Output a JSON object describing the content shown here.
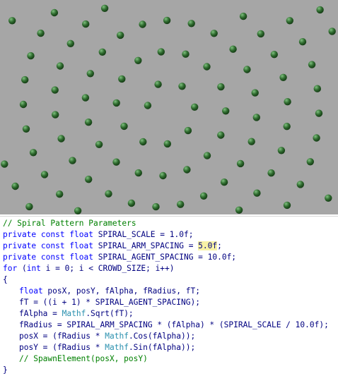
{
  "colors": {
    "background": "#a6a6a6",
    "agent_fill": "#2f6b2f",
    "comment": "#008000",
    "keyword": "#0000ff",
    "type": "#2b91af",
    "text": "#000080",
    "highlight": "#f7f2a6"
  },
  "scene": {
    "agent_shape": "green-sphere",
    "pattern": "spiral"
  },
  "code": {
    "l1": "// Spiral Pattern Parameters",
    "l2a": "private const float",
    "l2b": " SPIRAL_SCALE = 1.0f;",
    "l3a": "private const float",
    "l3b": " SPIRAL_ARM_SPACING = ",
    "l3c": "5.0f",
    "l3d": ";",
    "l4a": "private const float",
    "l4b": " SPIRAL_AGENT_SPACING = 10.0f;",
    "l5a": "for",
    "l5b": " (",
    "l5c": "int",
    "l5d": " i = 0; i < CROWD_SIZE; i++)",
    "l6": "{",
    "l7a": "float",
    "l7b": " posX, posY, fAlpha, fRadius, fT;",
    "l8": "fT = ((i + 1) * SPIRAL_AGENT_SPACING);",
    "l9a": "fAlpha = ",
    "l9b": "Mathf",
    "l9c": ".Sqrt(fT);",
    "l10": "fRadius = SPIRAL_ARM_SPACING * (fAlpha) * (SPIRAL_SCALE / 10.0f);",
    "l11a": "posX = (fRadius * ",
    "l11b": "Mathf",
    "l11c": ".Cos(fAlpha));",
    "l12a": "posY = (fRadius * ",
    "l12b": "Mathf",
    "l12c": ".Sin(fAlpha));",
    "l13": "// SpawnElement(posX, posY)",
    "l14": "}"
  }
}
